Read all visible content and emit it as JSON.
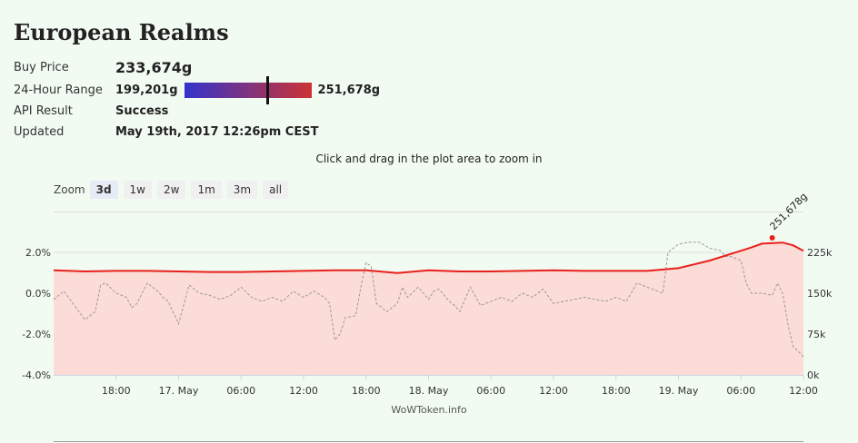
{
  "page": {
    "title": "European Realms",
    "buy_price_label": "Buy Price",
    "buy_price": "233,674g",
    "range_label": "24-Hour Range",
    "range_low": "199,201g",
    "range_high": "251,678g",
    "api_label": "API Result",
    "api_result": "Success",
    "updated_label": "Updated",
    "updated": "May 19th, 2017 12:26pm CEST",
    "zoom_hint": "Click and drag in the plot area to zoom in",
    "zoom_label": "Zoom",
    "zoom_buttons": [
      "3d",
      "1w",
      "2w",
      "1m",
      "3m",
      "all"
    ],
    "zoom_active": "3d",
    "credits": "WoWToken.info",
    "range_marker_fraction": 0.66,
    "range_bar_gradient": [
      "#3333cc",
      "#cc3333"
    ]
  },
  "chart_data": {
    "type": "line",
    "x_tick_labels": [
      "18:00",
      "17. May",
      "06:00",
      "12:00",
      "18:00",
      "18. May",
      "06:00",
      "12:00",
      "18:00",
      "19. May",
      "06:00",
      "12:00"
    ],
    "x_tick_hours": [
      6,
      12,
      18,
      24,
      30,
      36,
      42,
      48,
      54,
      60,
      66,
      72
    ],
    "x_range_hours": [
      0,
      72
    ],
    "y_left": {
      "ticks": [
        "-4.0%",
        "-2.0%",
        "0.0%",
        "2.0%"
      ],
      "values": [
        -4,
        -2,
        0,
        2
      ],
      "range": [
        -4,
        4
      ]
    },
    "y_right": {
      "ticks": [
        "0k",
        "75k",
        "150k",
        "225k"
      ],
      "values": [
        0,
        75000,
        150000,
        225000
      ],
      "range": [
        0,
        300000
      ]
    },
    "annotation": {
      "label": "251,678g",
      "hour": 69,
      "value": 251678
    },
    "series": [
      {
        "name": "",
        "axis": "right",
        "style": "solid-area",
        "color": "#e8201c",
        "fill": "#fcdcd6",
        "points": [
          [
            0,
            192000
          ],
          [
            3,
            190000
          ],
          [
            6,
            191000
          ],
          [
            9,
            191000
          ],
          [
            12,
            190000
          ],
          [
            15,
            189000
          ],
          [
            18,
            189000
          ],
          [
            21,
            190000
          ],
          [
            24,
            191000
          ],
          [
            27,
            192000
          ],
          [
            30,
            192000
          ],
          [
            33,
            187000
          ],
          [
            36,
            192000
          ],
          [
            39,
            190000
          ],
          [
            42,
            190000
          ],
          [
            45,
            191000
          ],
          [
            48,
            192000
          ],
          [
            51,
            191000
          ],
          [
            54,
            191000
          ],
          [
            57,
            191000
          ],
          [
            60,
            196000
          ],
          [
            63,
            210000
          ],
          [
            66,
            228000
          ],
          [
            67,
            234000
          ],
          [
            68,
            241000
          ],
          [
            70,
            243000
          ],
          [
            71,
            238000
          ],
          [
            72,
            228000
          ]
        ]
      },
      {
        "name": "",
        "axis": "left",
        "style": "dashed",
        "color": "#999999",
        "points": [
          [
            0,
            -0.3
          ],
          [
            1,
            0.1
          ],
          [
            2,
            -0.6
          ],
          [
            3,
            -1.3
          ],
          [
            4,
            -0.9
          ],
          [
            4.5,
            0.4
          ],
          [
            5,
            0.5
          ],
          [
            6,
            0.0
          ],
          [
            7,
            -0.2
          ],
          [
            7.5,
            -0.7
          ],
          [
            8,
            -0.5
          ],
          [
            9,
            0.5
          ],
          [
            10,
            0.1
          ],
          [
            10.5,
            -0.2
          ],
          [
            11,
            -0.4
          ],
          [
            12,
            -1.5
          ],
          [
            13,
            0.4
          ],
          [
            14,
            0.0
          ],
          [
            15,
            -0.1
          ],
          [
            16,
            -0.3
          ],
          [
            17,
            -0.1
          ],
          [
            18,
            0.3
          ],
          [
            19,
            -0.2
          ],
          [
            20,
            -0.4
          ],
          [
            21,
            -0.2
          ],
          [
            22,
            -0.4
          ],
          [
            23,
            0.1
          ],
          [
            24,
            -0.2
          ],
          [
            25,
            0.1
          ],
          [
            26,
            -0.2
          ],
          [
            26.5,
            -0.5
          ],
          [
            27,
            -2.3
          ],
          [
            27.5,
            -2.0
          ],
          [
            28,
            -1.2
          ],
          [
            29,
            -1.1
          ],
          [
            29.5,
            0.3
          ],
          [
            30,
            1.5
          ],
          [
            30.5,
            1.3
          ],
          [
            31,
            -0.5
          ],
          [
            32,
            -0.9
          ],
          [
            33,
            -0.5
          ],
          [
            33.5,
            0.3
          ],
          [
            34,
            -0.2
          ],
          [
            35,
            0.3
          ],
          [
            36,
            -0.3
          ],
          [
            36.5,
            0.1
          ],
          [
            37,
            0.2
          ],
          [
            38,
            -0.4
          ],
          [
            38.5,
            -0.6
          ],
          [
            39,
            -0.9
          ],
          [
            40,
            0.3
          ],
          [
            41,
            -0.6
          ],
          [
            42,
            -0.4
          ],
          [
            43,
            -0.2
          ],
          [
            44,
            -0.4
          ],
          [
            45,
            0.0
          ],
          [
            46,
            -0.2
          ],
          [
            46.5,
            0.0
          ],
          [
            47,
            0.2
          ],
          [
            48,
            -0.5
          ],
          [
            49,
            -0.4
          ],
          [
            50,
            -0.3
          ],
          [
            51,
            -0.2
          ],
          [
            52,
            -0.3
          ],
          [
            53,
            -0.4
          ],
          [
            54,
            -0.2
          ],
          [
            55,
            -0.4
          ],
          [
            56,
            0.5
          ],
          [
            57,
            0.3
          ],
          [
            58,
            0.1
          ],
          [
            58.5,
            0.0
          ],
          [
            59,
            2.0
          ],
          [
            60,
            2.4
          ],
          [
            61,
            2.5
          ],
          [
            62,
            2.5
          ],
          [
            63,
            2.2
          ],
          [
            64,
            2.1
          ],
          [
            64.5,
            1.8
          ],
          [
            65,
            1.8
          ],
          [
            66,
            1.6
          ],
          [
            66.5,
            0.5
          ],
          [
            67,
            0.0
          ],
          [
            68,
            0.0
          ],
          [
            69,
            -0.1
          ],
          [
            69.5,
            0.5
          ],
          [
            70,
            0.0
          ],
          [
            70.5,
            -1.5
          ],
          [
            71,
            -2.6
          ],
          [
            72,
            -3.1
          ]
        ]
      }
    ],
    "grid": true,
    "legend": "none"
  }
}
